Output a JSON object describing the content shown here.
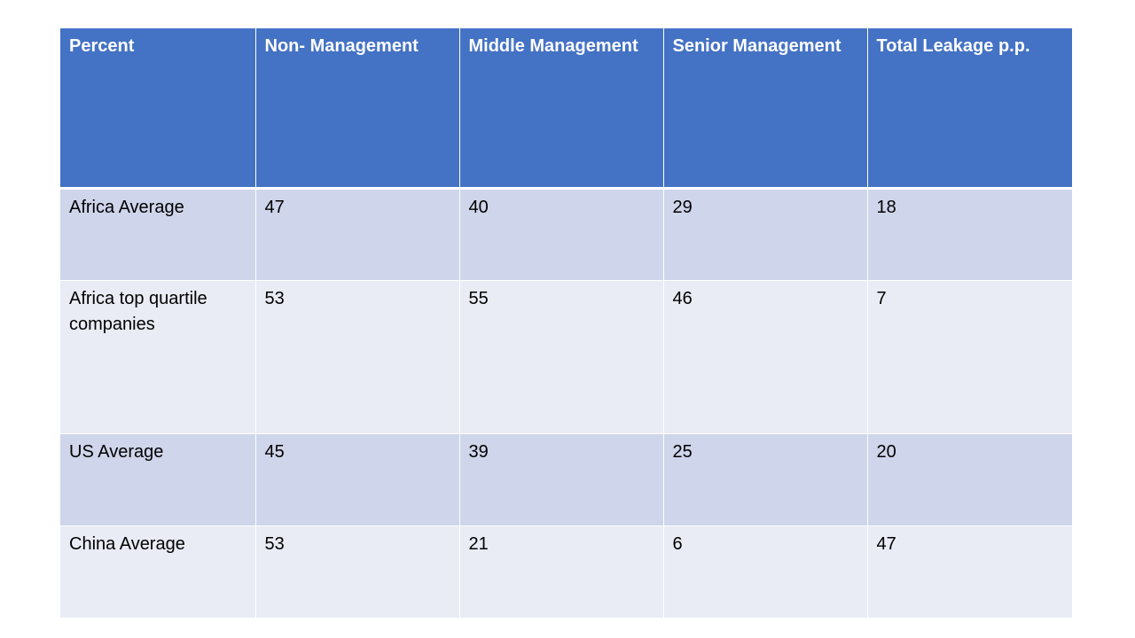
{
  "table": {
    "headers": [
      "Percent",
      "Non- Management",
      "Middle Management",
      "Senior Management",
      "Total Leakage p.p."
    ],
    "rows": [
      [
        "Africa Average",
        "47",
        "40",
        "29",
        "18"
      ],
      [
        "Africa top quartile companies",
        "53",
        "55",
        "46",
        "7"
      ],
      [
        "US Average",
        "45",
        "39",
        "25",
        "20"
      ],
      [
        "China Average",
        "53",
        "21",
        "6",
        "47"
      ]
    ]
  },
  "colors": {
    "header_bg": "#4472c4",
    "row_band_dark": "#cfd5ea",
    "row_band_light": "#e9ebf5"
  }
}
